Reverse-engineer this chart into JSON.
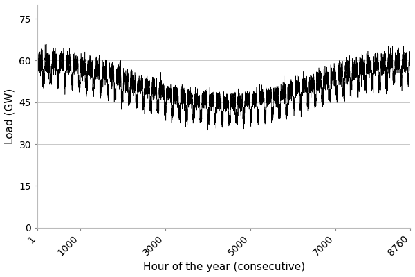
{
  "title": "",
  "xlabel": "Hour of the year (consecutive)",
  "ylabel": "Load (GW)",
  "xlim": [
    1,
    8760
  ],
  "ylim": [
    0,
    80
  ],
  "yticks": [
    0,
    15,
    30,
    45,
    60,
    75
  ],
  "xticks": [
    1,
    1000,
    3000,
    5000,
    7000,
    8760
  ],
  "xtick_labels": [
    "1",
    "1000",
    "3000",
    "5000",
    "7000",
    "8760"
  ],
  "line_color": "#000000",
  "line_width": 0.4,
  "background_color": "#ffffff",
  "grid_color": "#c8c8c8",
  "xlabel_fontsize": 11,
  "ylabel_fontsize": 11,
  "tick_fontsize": 10,
  "n_hours": 8760,
  "random_seed": 42
}
